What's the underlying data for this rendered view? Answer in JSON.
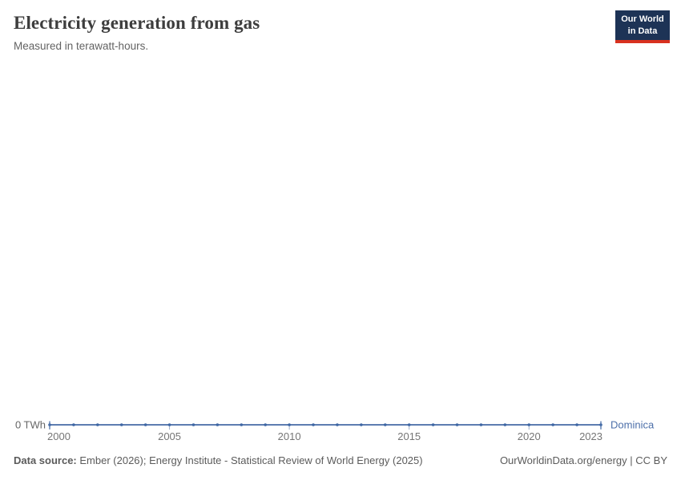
{
  "header": {
    "title": "Electricity generation from gas",
    "subtitle": "Measured in terawatt-hours.",
    "logo": {
      "line1": "Our World",
      "line2": "in Data",
      "bg_color": "#1d3356",
      "accent_color": "#d8311f"
    }
  },
  "chart_data": {
    "type": "line",
    "title": "Electricity generation from gas",
    "ylabel": "terawatt-hours",
    "x": [
      2000,
      2001,
      2002,
      2003,
      2004,
      2005,
      2006,
      2007,
      2008,
      2009,
      2010,
      2011,
      2012,
      2013,
      2014,
      2015,
      2016,
      2017,
      2018,
      2019,
      2020,
      2021,
      2022,
      2023
    ],
    "series": [
      {
        "name": "Dominica",
        "color": "#4c6fa9",
        "marker_color": "#3d66a4",
        "values": [
          0,
          0,
          0,
          0,
          0,
          0,
          0,
          0,
          0,
          0,
          0,
          0,
          0,
          0,
          0,
          0,
          0,
          0,
          0,
          0,
          0,
          0,
          0,
          0
        ]
      }
    ],
    "x_ticks": [
      2000,
      2005,
      2010,
      2015,
      2020,
      2023
    ],
    "y_ticks": [
      "0 TWh"
    ],
    "y_axis_label": "0 TWh",
    "ylim": [
      0,
      0
    ],
    "xlim": [
      2000,
      2023
    ],
    "grid": false,
    "legend_position": "end-of-line",
    "tick_color": "#9dafcb",
    "tick_label_color": "#757575",
    "axis_label_color": "#666666"
  },
  "footer": {
    "source_label": "Data source:",
    "source_text": "Ember (2026); Energy Institute - Statistical Review of World Energy (2025)",
    "right_text": "OurWorldinData.org/energy | CC BY"
  }
}
